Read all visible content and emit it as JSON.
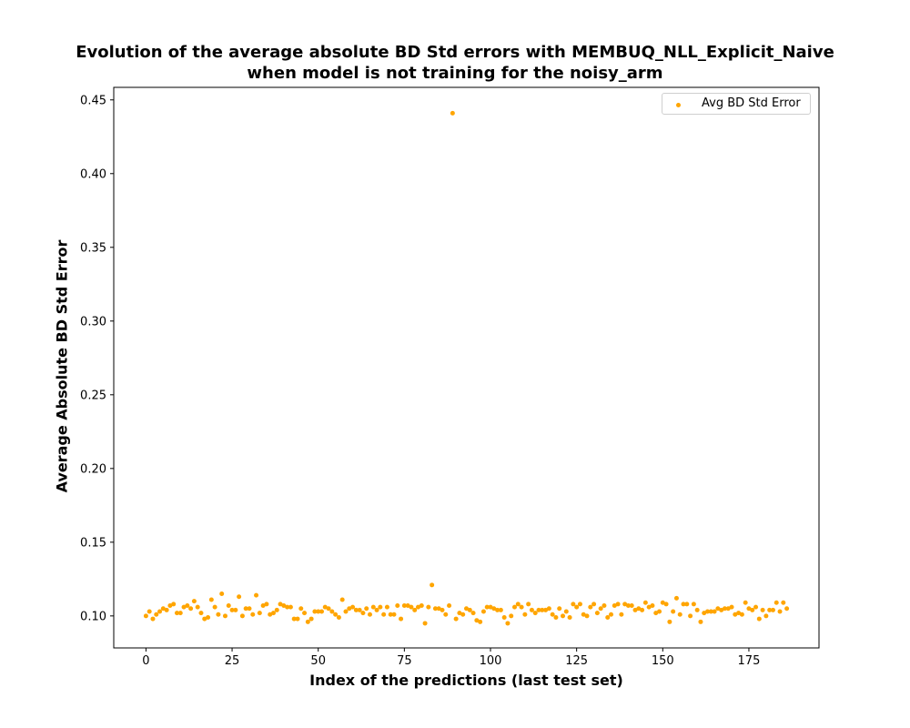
{
  "chart_data": {
    "type": "scatter",
    "title": "Evolution of the average absolute BD Std errors with MEMBUQ_NLL_Explicit_Naive",
    "subtitle": "when model is not training for the noisy_arm",
    "xlabel": "Index of the predictions (last test set)",
    "ylabel": "Average Absolute BD Std Error",
    "xlim": [
      -9.35,
      195.35
    ],
    "ylim": [
      0.0783,
      0.4585
    ],
    "xticks": [
      0,
      25,
      50,
      75,
      100,
      125,
      150,
      175
    ],
    "xtick_labels": [
      "0",
      "25",
      "50",
      "75",
      "100",
      "125",
      "150",
      "175"
    ],
    "yticks": [
      0.1,
      0.15,
      0.2,
      0.25,
      0.3,
      0.35,
      0.4,
      0.45
    ],
    "ytick_labels": [
      "0.10",
      "0.15",
      "0.20",
      "0.25",
      "0.30",
      "0.35",
      "0.40",
      "0.45"
    ],
    "grid": false,
    "legend_position": "top-right",
    "color": "#ffa500",
    "series": [
      {
        "name": "Avg BD Std Error",
        "values": [
          0.1,
          0.103,
          0.098,
          0.101,
          0.103,
          0.105,
          0.104,
          0.107,
          0.108,
          0.102,
          0.102,
          0.106,
          0.107,
          0.105,
          0.11,
          0.106,
          0.102,
          0.098,
          0.099,
          0.111,
          0.106,
          0.101,
          0.115,
          0.1,
          0.107,
          0.104,
          0.104,
          0.113,
          0.1,
          0.105,
          0.105,
          0.101,
          0.114,
          0.102,
          0.107,
          0.108,
          0.101,
          0.102,
          0.104,
          0.108,
          0.107,
          0.106,
          0.106,
          0.098,
          0.098,
          0.105,
          0.102,
          0.096,
          0.098,
          0.103,
          0.103,
          0.103,
          0.106,
          0.105,
          0.103,
          0.101,
          0.099,
          0.111,
          0.103,
          0.105,
          0.106,
          0.104,
          0.104,
          0.102,
          0.105,
          0.101,
          0.106,
          0.104,
          0.106,
          0.101,
          0.106,
          0.101,
          0.101,
          0.107,
          0.098,
          0.107,
          0.107,
          0.106,
          0.104,
          0.106,
          0.107,
          0.095,
          0.106,
          0.121,
          0.105,
          0.105,
          0.104,
          0.101,
          0.107,
          0.441,
          0.098,
          0.102,
          0.101,
          0.105,
          0.104,
          0.102,
          0.097,
          0.096,
          0.103,
          0.106,
          0.106,
          0.105,
          0.104,
          0.104,
          0.099,
          0.095,
          0.1,
          0.106,
          0.108,
          0.106,
          0.101,
          0.108,
          0.104,
          0.102,
          0.104,
          0.104,
          0.104,
          0.105,
          0.101,
          0.099,
          0.105,
          0.1,
          0.103,
          0.099,
          0.108,
          0.106,
          0.108,
          0.101,
          0.1,
          0.106,
          0.108,
          0.102,
          0.105,
          0.107,
          0.099,
          0.101,
          0.107,
          0.108,
          0.101,
          0.108,
          0.107,
          0.107,
          0.104,
          0.105,
          0.104,
          0.109,
          0.106,
          0.107,
          0.102,
          0.103,
          0.109,
          0.108,
          0.096,
          0.103,
          0.112,
          0.101,
          0.108,
          0.108,
          0.1,
          0.108,
          0.104,
          0.096,
          0.102,
          0.103,
          0.103,
          0.103,
          0.105,
          0.104,
          0.105,
          0.105,
          0.106,
          0.101,
          0.102,
          0.101,
          0.109,
          0.105,
          0.104,
          0.106,
          0.098,
          0.104,
          0.1,
          0.104,
          0.104,
          0.109,
          0.103,
          0.109,
          0.105
        ]
      }
    ]
  }
}
